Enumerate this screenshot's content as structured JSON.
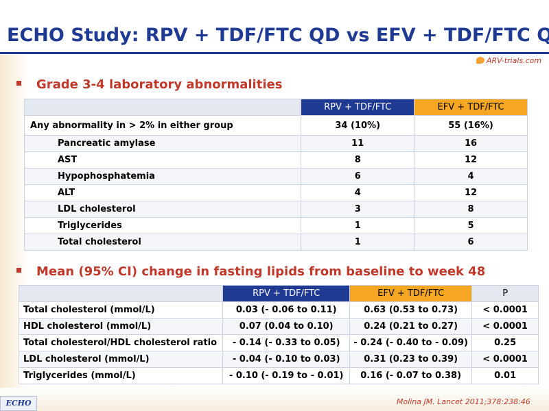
{
  "title": "ECHO Study: RPV + TDF/FTC QD vs EFV + TDF/FTC QD",
  "logo": "ARV-trials.com",
  "section1": {
    "heading": "Grade 3-4 laboratory abnormalities",
    "columns": [
      "",
      "RPV + TDF/FTC",
      "EFV + TDF/FTC"
    ],
    "rows": [
      {
        "label": "Any abnormality in > 2% in either group",
        "rpv": "34 (10%)",
        "efv": "55 (16%)"
      },
      {
        "label": "Pancreatic amylase",
        "rpv": "11",
        "efv": "16"
      },
      {
        "label": "AST",
        "rpv": "8",
        "efv": "12"
      },
      {
        "label": "Hypophosphatemia",
        "rpv": "6",
        "efv": "4"
      },
      {
        "label": "ALT",
        "rpv": "4",
        "efv": "12"
      },
      {
        "label": "LDL cholesterol",
        "rpv": "3",
        "efv": "8"
      },
      {
        "label": "Triglycerides",
        "rpv": "1",
        "efv": "5"
      },
      {
        "label": "Total cholesterol",
        "rpv": "1",
        "efv": "6"
      }
    ]
  },
  "section2": {
    "heading": "Mean (95% CI) change in fasting lipids from baseline to week 48",
    "columns": [
      "",
      "RPV + TDF/FTC",
      "EFV + TDF/FTC",
      "P"
    ],
    "rows": [
      {
        "label": "Total cholesterol (mmol/L)",
        "rpv": "0.03 (- 0.06 to 0.11)",
        "efv": "0.63 (0.53 to 0.73)",
        "p": "< 0.0001"
      },
      {
        "label": "HDL cholesterol (mmol/L)",
        "rpv": "0.07 (0.04 to 0.10)",
        "efv": "0.24 (0.21 to 0.27)",
        "p": "< 0.0001"
      },
      {
        "label": "Total cholesterol/HDL cholesterol ratio",
        "rpv": "- 0.14 (- 0.33 to 0.05)",
        "efv": "- 0.24 (- 0.40 to - 0.09)",
        "p": "0.25"
      },
      {
        "label": "LDL cholesterol (mmol/L)",
        "rpv": "- 0.04 (- 0.10 to 0.03)",
        "efv": "0.31 (0.23 to 0.39)",
        "p": "< 0.0001"
      },
      {
        "label": "Triglycerides (mmol/L)",
        "rpv": "- 0.10 (- 0.19 to - 0.01)",
        "efv": "0.16 (- 0.07 to 0.38)",
        "p": "0.01"
      }
    ]
  },
  "footer": {
    "study_tag": "ECHO",
    "citation": "Molina JM. Lancet 2011;378:238:46"
  },
  "colors": {
    "title_blue": "#1f3a93",
    "accent_red": "#c0392b",
    "header_orange": "#f5a623"
  }
}
